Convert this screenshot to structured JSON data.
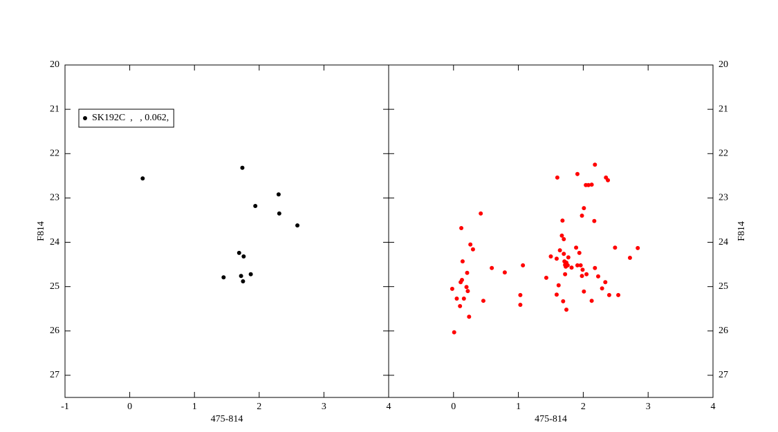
{
  "chart_data": [
    {
      "type": "scatter",
      "xlabel": "475-814",
      "ylabel": "F814",
      "xlim": [
        -1,
        4
      ],
      "ylim": [
        27.5,
        20
      ],
      "xticks": [
        -1,
        0,
        1,
        2,
        3,
        4
      ],
      "yticks": [
        20,
        21,
        22,
        23,
        24,
        25,
        26,
        27
      ],
      "legend": "upper left",
      "series": [
        {
          "name": "SK192C  ,   , 0.062,",
          "color": "#000000",
          "x": [
            0.2,
            1.74,
            2.3,
            1.94,
            2.31,
            2.59,
            1.69,
            1.76,
            1.45,
            1.72,
            1.87,
            1.75
          ],
          "values": [
            22.56,
            22.32,
            22.92,
            23.18,
            23.35,
            23.62,
            24.24,
            24.32,
            24.79,
            24.76,
            24.72,
            24.88
          ]
        }
      ]
    },
    {
      "type": "scatter",
      "xlabel": "475-814",
      "ylabel": "F814",
      "xlim": [
        -1,
        4
      ],
      "ylim": [
        27.5,
        20
      ],
      "xticks": [
        0,
        1,
        2,
        3,
        4
      ],
      "yticks": [
        20,
        21,
        22,
        23,
        24,
        25,
        26,
        27
      ],
      "series": [
        {
          "color": "#ff0000",
          "x": [
            0.01,
            -0.02,
            0.05,
            0.1,
            0.11,
            0.13,
            0.16,
            0.2,
            0.22,
            0.24,
            0.21,
            0.14,
            0.12,
            0.26,
            0.3,
            0.42,
            0.46,
            0.59,
            0.79,
            1.03,
            1.03,
            1.07,
            1.43,
            1.5,
            1.59,
            1.6,
            1.59,
            1.62,
            1.64,
            1.67,
            1.68,
            1.7,
            1.69,
            1.7,
            1.71,
            1.72,
            1.73,
            1.74,
            1.76,
            1.72,
            1.77,
            1.74,
            1.82,
            1.91,
            1.89,
            1.94,
            1.91,
            1.96,
            1.98,
            1.98,
            2.01,
            1.99,
            2.01,
            2.04,
            2.08,
            2.13,
            2.05,
            2.13,
            2.17,
            2.18,
            2.18,
            2.23,
            2.29,
            2.34,
            2.35,
            2.38,
            2.4,
            2.49,
            2.54,
            2.72,
            2.84
          ],
          "values": [
            26.03,
            25.05,
            25.27,
            25.44,
            24.9,
            24.85,
            25.27,
            25.01,
            25.1,
            25.68,
            24.69,
            24.43,
            23.68,
            24.05,
            24.16,
            23.35,
            25.32,
            24.58,
            24.68,
            25.19,
            25.41,
            24.52,
            24.8,
            24.32,
            24.37,
            22.54,
            25.18,
            24.97,
            24.18,
            23.85,
            23.51,
            23.93,
            25.33,
            24.26,
            24.43,
            24.51,
            24.55,
            24.46,
            24.52,
            24.72,
            24.34,
            25.52,
            24.57,
            22.46,
            24.12,
            24.24,
            24.52,
            24.52,
            24.76,
            23.4,
            23.23,
            24.62,
            25.11,
            22.71,
            22.71,
            22.7,
            24.72,
            25.32,
            23.52,
            22.25,
            24.58,
            24.77,
            25.04,
            24.9,
            22.54,
            22.6,
            25.19,
            24.12,
            25.19,
            24.35,
            24.13
          ]
        }
      ]
    }
  ]
}
